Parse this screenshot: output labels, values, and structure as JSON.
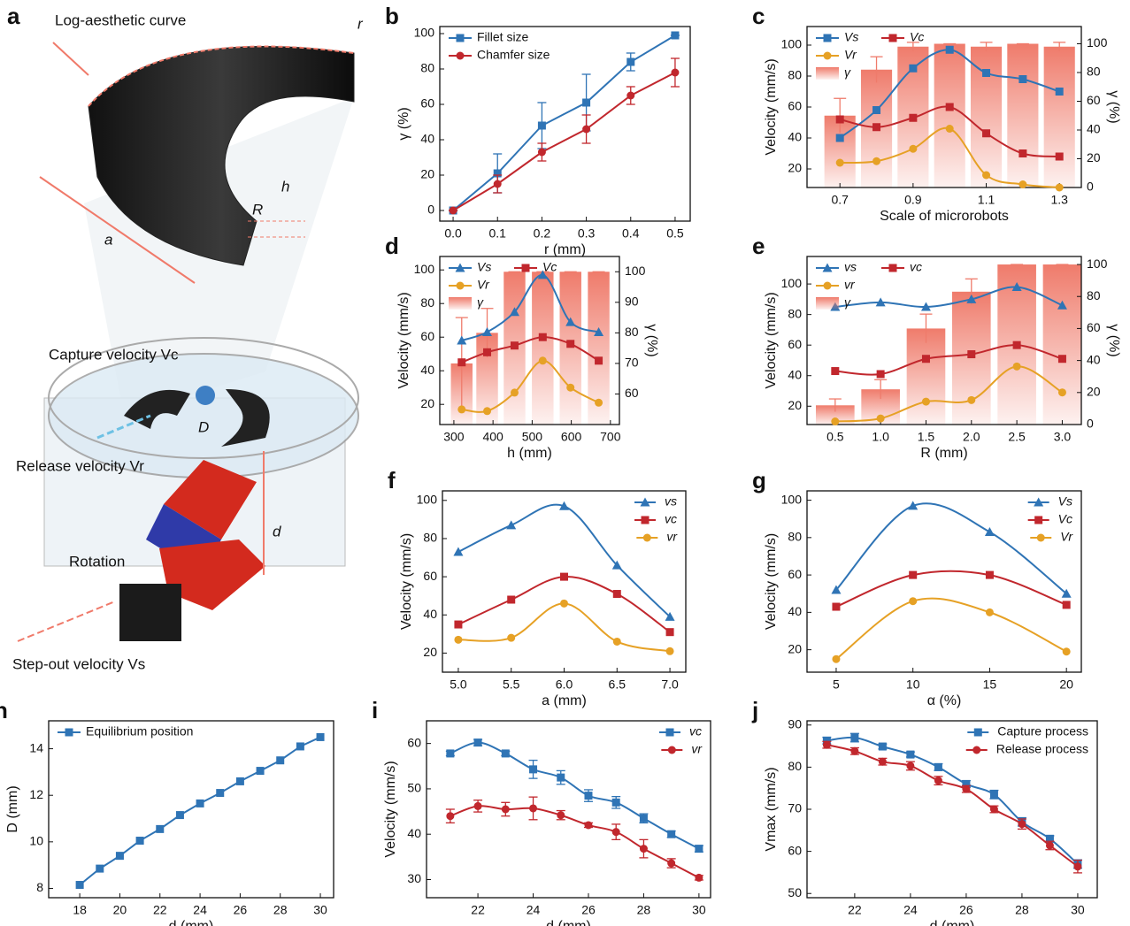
{
  "illustration": {
    "panel": "a",
    "labels": [
      "Log-aesthetic curve",
      "r",
      "R",
      "h",
      "a",
      "Capture velocity Vc",
      "D",
      "Release velocity Vr",
      "d",
      "Rotation",
      "Step-out velocity Vs"
    ]
  },
  "chart_data": [
    {
      "panel": "b",
      "type": "line",
      "xlabel": "r (mm)",
      "ylabel": "γ (%)",
      "smooth": false,
      "legend": "top-left",
      "x": [
        0,
        0.1,
        0.2,
        0.3,
        0.4,
        0.5
      ],
      "xlim": [
        -0.03,
        0.534
      ],
      "xticks": [
        {
          "value": 0,
          "label": "0.0"
        },
        0.1,
        0.2,
        0.3,
        0.4,
        0.5
      ],
      "ylim": [
        -6,
        104
      ],
      "yticks": [
        0,
        20,
        40,
        60,
        80,
        100
      ],
      "series": [
        {
          "name": "Fillet size",
          "color": "#2f74b5",
          "marker": "square",
          "values": [
            0,
            21,
            48,
            61,
            84,
            99
          ],
          "errors": [
            0,
            11,
            13,
            16,
            5,
            0
          ]
        },
        {
          "name": "Chamfer size",
          "color": "#c1272d",
          "marker": "circle",
          "values": [
            0,
            15,
            33,
            46,
            65,
            78
          ],
          "errors": [
            0,
            5,
            5,
            8,
            5,
            8
          ]
        }
      ]
    },
    {
      "panel": "c",
      "type": "bar-line",
      "xlabel": "Scale of microrobots",
      "ylabel": "Velocity (mm/s)",
      "y2label": "γ (%)",
      "smooth": true,
      "legend": "top-left",
      "x": [
        0.7,
        0.8,
        0.9,
        1.0,
        1.1,
        1.2,
        1.3
      ],
      "xlim": [
        0.61,
        1.36
      ],
      "xticks": [
        0.7,
        0.9,
        1.1,
        1.3
      ],
      "ylim": [
        8,
        112
      ],
      "yticks": [
        20,
        40,
        60,
        80,
        100
      ],
      "y2lim": [
        0,
        112
      ],
      "y2ticks": [
        0,
        20,
        40,
        60,
        80,
        100
      ],
      "series": [
        {
          "name": "Vs",
          "color": "#2f74b5",
          "marker": "square",
          "values": [
            40,
            58,
            85,
            97,
            82,
            78,
            70
          ]
        },
        {
          "name": "Vc",
          "color": "#c1272d",
          "marker": "square",
          "values": [
            52,
            47,
            53,
            60,
            43,
            30,
            28
          ]
        },
        {
          "name": "Vr",
          "color": "#e6a125",
          "marker": "circle",
          "values": [
            24,
            25,
            33,
            46,
            16,
            10,
            8
          ]
        },
        {
          "name": "γ",
          "type": "bar",
          "axis": "y2",
          "color": "#ef7b6b",
          "values": [
            50,
            82,
            98,
            100,
            98,
            100,
            98
          ],
          "errors": [
            12,
            9,
            3,
            0,
            3,
            0,
            3
          ]
        }
      ]
    },
    {
      "panel": "d",
      "type": "bar-line",
      "xlabel": "h (mm)",
      "ylabel": "Velocity (mm/s)",
      "y2label": "γ (%)",
      "smooth": true,
      "legend": "top-left",
      "x": [
        320,
        385,
        455,
        527,
        598,
        670
      ],
      "xlim": [
        264,
        723
      ],
      "xticks": [
        300,
        400,
        500,
        600,
        700
      ],
      "ylim": [
        8,
        108
      ],
      "yticks": [
        20,
        40,
        60,
        80,
        100
      ],
      "y2lim": [
        50,
        105
      ],
      "y2ticks": [
        60,
        70,
        80,
        90,
        100
      ],
      "series": [
        {
          "name": "Vs",
          "color": "#2f74b5",
          "marker": "triangle",
          "values": [
            58,
            63,
            75,
            97,
            69,
            63
          ]
        },
        {
          "name": "Vc",
          "color": "#c1272d",
          "marker": "square",
          "values": [
            45,
            51,
            55,
            60,
            56,
            46
          ]
        },
        {
          "name": "Vr",
          "color": "#e6a125",
          "marker": "circle",
          "values": [
            17,
            16,
            27,
            46,
            30,
            21
          ]
        },
        {
          "name": "γ",
          "type": "bar",
          "axis": "y2",
          "color": "#ef7b6b",
          "values": [
            70,
            80,
            100,
            100,
            100,
            100
          ],
          "errors": [
            15,
            8,
            0,
            0,
            0,
            0
          ]
        }
      ]
    },
    {
      "panel": "e",
      "type": "bar-line",
      "xlabel": "R (mm)",
      "ylabel": "Velocity (mm/s)",
      "y2label": "γ (%)",
      "smooth": true,
      "legend": "top-left",
      "x": [
        0.5,
        1,
        1.5,
        2,
        2.5,
        3
      ],
      "xlim": [
        0.19,
        3.21
      ],
      "xticks": [
        0.5,
        {
          "value": 1,
          "label": "1.0"
        },
        1.5,
        {
          "value": 2,
          "label": "2.0"
        },
        2.5,
        {
          "value": 3,
          "label": "3.0"
        }
      ],
      "ylim": [
        8,
        118
      ],
      "yticks": [
        20,
        40,
        60,
        80,
        100
      ],
      "y2lim": [
        0,
        105
      ],
      "y2ticks": [
        0,
        20,
        40,
        60,
        80,
        100
      ],
      "series": [
        {
          "name": "vs",
          "color": "#2f74b5",
          "marker": "triangle",
          "values": [
            85,
            88,
            85,
            90,
            98,
            86
          ]
        },
        {
          "name": "vc",
          "color": "#c1272d",
          "marker": "square",
          "values": [
            43,
            41,
            51,
            54,
            60,
            51
          ]
        },
        {
          "name": "vr",
          "color": "#e6a125",
          "marker": "circle",
          "values": [
            10,
            12,
            23,
            24,
            46,
            29
          ]
        },
        {
          "name": "γ",
          "type": "bar",
          "axis": "y2",
          "color": "#ef7b6b",
          "values": [
            12,
            22,
            60,
            83,
            100,
            100
          ],
          "errors": [
            4,
            6,
            9,
            8,
            0,
            0
          ]
        }
      ]
    },
    {
      "panel": "f",
      "type": "line",
      "xlabel": "a (mm)",
      "ylabel": "Velocity (mm/s)",
      "smooth": true,
      "legend": "top-right",
      "x": [
        5,
        5.5,
        6,
        6.5,
        7
      ],
      "xlim": [
        4.85,
        7.15
      ],
      "xticks": [
        {
          "value": 5,
          "label": "5.0"
        },
        5.5,
        {
          "value": 6,
          "label": "6.0"
        },
        6.5,
        {
          "value": 7,
          "label": "7.0"
        }
      ],
      "ylim": [
        10,
        105
      ],
      "yticks": [
        20,
        40,
        60,
        80,
        100
      ],
      "series": [
        {
          "name": "vs",
          "color": "#2f74b5",
          "marker": "triangle",
          "values": [
            73,
            87,
            97,
            66,
            39
          ]
        },
        {
          "name": "vc",
          "color": "#c1272d",
          "marker": "square",
          "values": [
            35,
            48,
            60,
            51,
            31
          ]
        },
        {
          "name": "vr",
          "color": "#e6a125",
          "marker": "circle",
          "values": [
            27,
            28,
            46,
            26,
            21
          ]
        }
      ]
    },
    {
      "panel": "g",
      "type": "line",
      "xlabel": "α (%)",
      "ylabel": "Velocity (mm/s)",
      "smooth": true,
      "legend": "top-right",
      "x": [
        5,
        10,
        15,
        20
      ],
      "xlim": [
        3.1,
        20.97
      ],
      "xticks": [
        5,
        10,
        15,
        20
      ],
      "ylim": [
        8,
        105
      ],
      "yticks": [
        20,
        40,
        60,
        80,
        100
      ],
      "series": [
        {
          "name": "Vs",
          "color": "#2f74b5",
          "marker": "triangle",
          "values": [
            52,
            97,
            83,
            50
          ]
        },
        {
          "name": "Vc",
          "color": "#c1272d",
          "marker": "square",
          "values": [
            43,
            60,
            60,
            44
          ]
        },
        {
          "name": "Vr",
          "color": "#e6a125",
          "marker": "circle",
          "values": [
            15,
            46,
            40,
            19
          ]
        }
      ]
    },
    {
      "panel": "h",
      "type": "line",
      "xlabel": "d (mm)",
      "ylabel": "D (mm)",
      "smooth": false,
      "legend": "top-left",
      "x": [
        18,
        19,
        20,
        21,
        22,
        23,
        24,
        25,
        26,
        27,
        28,
        29,
        30
      ],
      "xlim": [
        16.45,
        30.66
      ],
      "xticks": [
        18,
        20,
        22,
        24,
        26,
        28,
        30
      ],
      "ylim": [
        7.6,
        15.2
      ],
      "yticks": [
        8,
        10,
        12,
        14
      ],
      "series": [
        {
          "name": "Equilibrium position",
          "color": "#2f74b5",
          "marker": "square",
          "values": [
            8.15,
            8.85,
            9.4,
            10.05,
            10.55,
            11.15,
            11.65,
            12.1,
            12.6,
            13.05,
            13.5,
            14.1,
            14.5
          ]
        }
      ]
    },
    {
      "panel": "i",
      "type": "line",
      "xlabel": "d (mm)",
      "ylabel": "Velocity (mm/s)",
      "smooth": true,
      "legend": "top-right",
      "x": [
        21,
        22,
        23,
        24,
        25,
        26,
        27,
        28,
        29,
        30
      ],
      "xlim": [
        20.14,
        30.42
      ],
      "xticks": [
        22,
        24,
        26,
        28,
        30
      ],
      "ylim": [
        26,
        65
      ],
      "yticks": [
        30,
        40,
        50,
        60
      ],
      "series": [
        {
          "name": "vc",
          "color": "#2f74b5",
          "marker": "square",
          "values": [
            57.8,
            60.2,
            57.8,
            54.3,
            52.5,
            48.5,
            47,
            43.5,
            40,
            36.8
          ],
          "errors": [
            0.5,
            0.7,
            0.5,
            2,
            1.5,
            1.3,
            1.3,
            1,
            0.7,
            0.7
          ]
        },
        {
          "name": "vr",
          "color": "#c1272d",
          "marker": "circle",
          "values": [
            44,
            46.2,
            45.5,
            45.7,
            44.2,
            42,
            40.5,
            36.8,
            33.6,
            30.4
          ],
          "errors": [
            1.5,
            1.3,
            1.5,
            2.5,
            1,
            0.5,
            1.7,
            2,
            1,
            0.5
          ]
        }
      ]
    },
    {
      "panel": "j",
      "type": "line",
      "xlabel": "d (mm)",
      "ylabel": "Vmax (mm/s)",
      "smooth": true,
      "legend": "top-right",
      "x": [
        21,
        22,
        23,
        24,
        25,
        26,
        27,
        28,
        29,
        30
      ],
      "xlim": [
        20.29,
        30.7
      ],
      "xticks": [
        22,
        24,
        26,
        28,
        30
      ],
      "ylim": [
        49,
        91
      ],
      "yticks": [
        50,
        60,
        70,
        80,
        90
      ],
      "series": [
        {
          "name": "Capture process",
          "color": "#2f74b5",
          "marker": "square",
          "values": [
            86.3,
            87,
            84.9,
            83,
            80,
            76,
            73.5,
            67,
            63,
            57
          ],
          "errors": [
            0.8,
            1,
            0.6,
            0.6,
            0.8,
            0.8,
            1,
            1,
            0.7,
            1
          ]
        },
        {
          "name": "Release process",
          "color": "#c1272d",
          "marker": "circle",
          "values": [
            85.3,
            83.8,
            81.3,
            80.3,
            76.8,
            74.8,
            70,
            66.5,
            61.4,
            56.4
          ],
          "errors": [
            0.8,
            0.8,
            0.8,
            1,
            1,
            0.8,
            0.8,
            1.2,
            1,
            1.5
          ]
        }
      ]
    }
  ]
}
